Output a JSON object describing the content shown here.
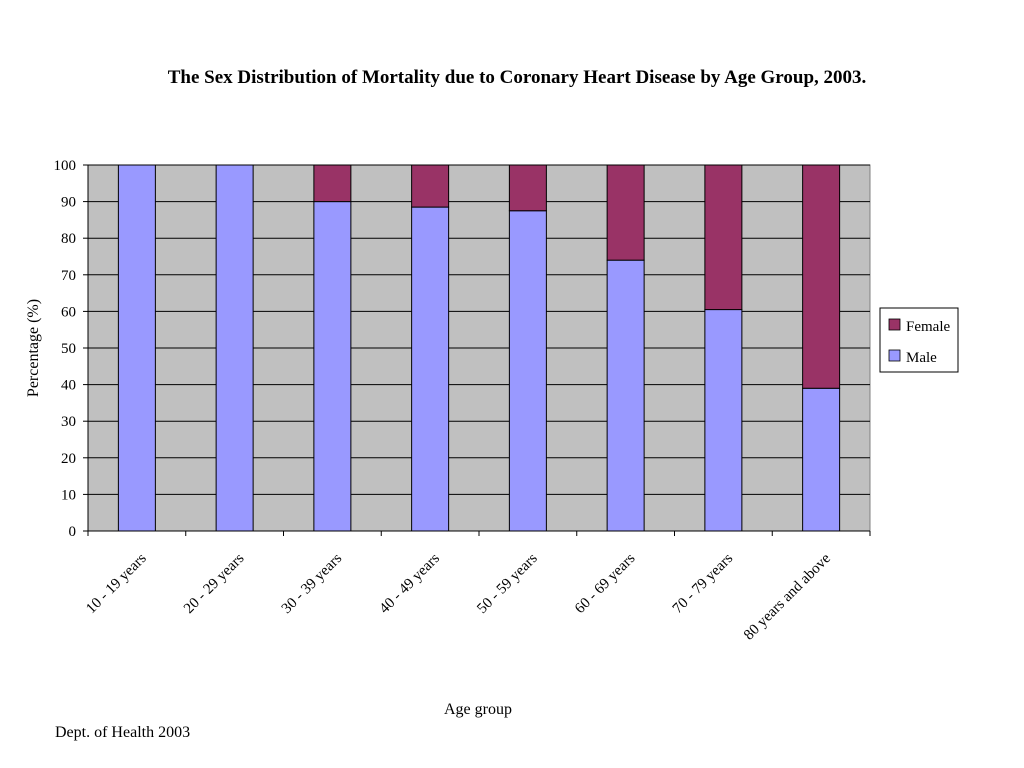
{
  "chart_data": {
    "type": "bar",
    "stacked": true,
    "title": "The Sex Distribution of Mortality due to Coronary Heart Disease  by Age Group, 2003.",
    "xlabel": "Age group",
    "ylabel": "Percentage (%)",
    "ylim": [
      0,
      100
    ],
    "yticks": [
      0,
      10,
      20,
      30,
      40,
      50,
      60,
      70,
      80,
      90,
      100
    ],
    "grid": true,
    "legend_position": "right",
    "categories": [
      "10 - 19 years",
      "20 - 29 years",
      "30 - 39 years",
      "40 - 49 years",
      "50 - 59 years",
      "60 - 69 years",
      "70 - 79 years",
      "80 years and above"
    ],
    "series": [
      {
        "name": "Male",
        "color": "#9999ff",
        "values": [
          100,
          100,
          90,
          88.5,
          87.5,
          74,
          60.5,
          39
        ]
      },
      {
        "name": "Female",
        "color": "#993366",
        "values": [
          0,
          0,
          10,
          11.5,
          12.5,
          26,
          39.5,
          61
        ]
      }
    ],
    "legend": [
      "Female",
      "Male"
    ],
    "plot_background": "#c0c0c0"
  },
  "footnote": "Dept. of Health 2003"
}
